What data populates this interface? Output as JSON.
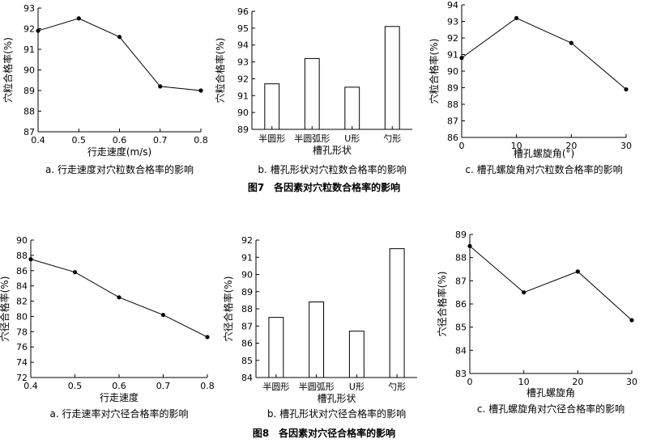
{
  "figures": [
    {
      "title": "图7　各因素对穴粒数合格率的影响"
    },
    {
      "title": "图8　各因素对穴径合格率的影响"
    }
  ],
  "chart_data": [
    {
      "type": "line",
      "caption": "a. 行走速度对穴粒数合格率的影响",
      "xlabel": "行走速度(m/s)",
      "ylabel": "穴粒合格率(%)",
      "x": [
        0.4,
        0.5,
        0.6,
        0.7,
        0.8
      ],
      "values": [
        91.9,
        92.5,
        91.6,
        89.2,
        89.0
      ],
      "xlim": [
        0.4,
        0.8
      ],
      "ylim": [
        87,
        93
      ],
      "xticks": [
        "0.4",
        "0.5",
        "0.6",
        "0.7",
        "0.8"
      ],
      "yticks": [
        "87",
        "88",
        "89",
        "90",
        "91",
        "92",
        "93"
      ]
    },
    {
      "type": "bar",
      "caption": "b. 槽孔形状对穴粒数合格率的影响",
      "xlabel": "槽孔形状",
      "ylabel": "穴粒合格率(%)",
      "categories": [
        "半圆形",
        "半圆弧形",
        "U形",
        "勺形"
      ],
      "values": [
        91.7,
        93.2,
        91.5,
        95.1
      ],
      "ylim": [
        89,
        96
      ],
      "yticks": [
        "89",
        "90",
        "91",
        "92",
        "93",
        "94",
        "95",
        "96"
      ]
    },
    {
      "type": "line",
      "caption": "c. 槽孔螺旋角对穴粒数合格率的影响",
      "xlabel": "槽孔螺旋角(°)",
      "ylabel": "穴粒合格率(%)",
      "x": [
        0,
        10,
        20,
        30
      ],
      "values": [
        90.8,
        93.2,
        91.7,
        88.9
      ],
      "xlim": [
        0,
        30
      ],
      "ylim": [
        86,
        94
      ],
      "xticks": [
        "0",
        "10",
        "20",
        "30"
      ],
      "yticks": [
        "86",
        "87",
        "88",
        "89",
        "90",
        "91",
        "92",
        "93",
        "94"
      ]
    },
    {
      "type": "line",
      "caption": "a. 行走速率对穴径合格率的影响",
      "xlabel": "行走速度",
      "ylabel": "穴径合格率(%)",
      "x": [
        0.4,
        0.5,
        0.6,
        0.7,
        0.8
      ],
      "values": [
        87.5,
        85.8,
        82.5,
        80.2,
        77.3
      ],
      "xlim": [
        0.4,
        0.8
      ],
      "ylim": [
        72,
        90
      ],
      "xticks": [
        "0.4",
        "0.5",
        "0.6",
        "0.7",
        "0.8"
      ],
      "yticks": [
        "72",
        "74",
        "76",
        "78",
        "80",
        "82",
        "84",
        "86",
        "88",
        "90"
      ]
    },
    {
      "type": "bar",
      "caption": "b. 槽孔形状对穴径合格率的影响",
      "xlabel": "槽孔形状",
      "ylabel": "穴径合格率(%)",
      "categories": [
        "半圆形",
        "半圆弧形",
        "U形",
        "勺形"
      ],
      "values": [
        87.5,
        88.4,
        86.7,
        91.5
      ],
      "ylim": [
        84,
        92
      ],
      "yticks": [
        "84",
        "85",
        "86",
        "87",
        "88",
        "89",
        "90",
        "91",
        "92"
      ]
    },
    {
      "type": "line",
      "caption": "c. 槽孔螺旋角对穴径合格率的影响",
      "xlabel": "槽孔螺旋角",
      "ylabel": "穴径合格率(%)",
      "x": [
        0,
        10,
        20,
        30
      ],
      "values": [
        88.5,
        86.5,
        87.4,
        85.3
      ],
      "xlim": [
        0,
        30
      ],
      "ylim": [
        83,
        89
      ],
      "xticks": [
        "0",
        "10",
        "20",
        "30"
      ],
      "yticks": [
        "83",
        "84",
        "85",
        "86",
        "87",
        "88",
        "89"
      ]
    }
  ]
}
